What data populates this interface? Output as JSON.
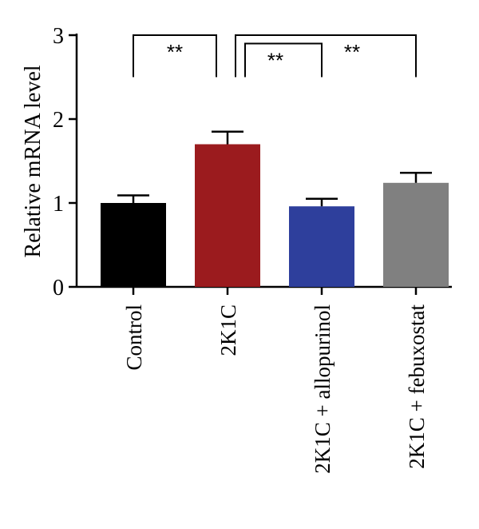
{
  "chart_data": {
    "type": "bar",
    "title": "",
    "xlabel": "",
    "ylabel": "Relative mRNA level",
    "ylim": [
      0,
      3
    ],
    "yticks": [
      0,
      1,
      2,
      3
    ],
    "categories": [
      "Control",
      "2K1C",
      "2K1C + allopurinol",
      "2K1C + febuxostat"
    ],
    "values": [
      1.0,
      1.7,
      0.96,
      1.24
    ],
    "errors": [
      0.09,
      0.15,
      0.09,
      0.12
    ],
    "colors": [
      "#000000",
      "#9b1b1e",
      "#2e3f9c",
      "#808080"
    ],
    "grid": false,
    "legend": "none",
    "significance": [
      {
        "from": 0,
        "to": 1,
        "label": "**",
        "bottom": 2.5,
        "top": 3.0
      },
      {
        "from": 1,
        "to": 2,
        "label": "**",
        "bottom": 2.5,
        "top": 2.9
      },
      {
        "from": 1,
        "to": 3,
        "label": "**",
        "bottom": 2.5,
        "top": 3.0
      }
    ]
  }
}
